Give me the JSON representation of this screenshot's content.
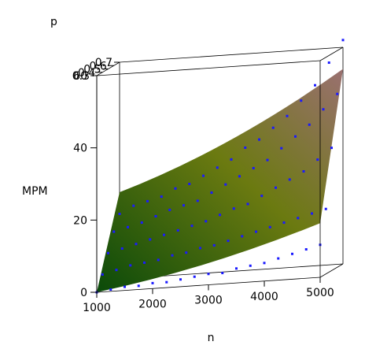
{
  "chart_data": {
    "type": "scatter",
    "title": "",
    "surface": {
      "type": "fitted-surface",
      "description_colors": [
        "#0a4a0a",
        "#6b7a10",
        "#9a7070"
      ],
      "corners": {
        "n1000_p0.3": 0,
        "n5000_p0.3": 15,
        "n1000_p0.7": 24,
        "n5000_p0.7": 54
      }
    },
    "axes": {
      "x": {
        "label": "n",
        "range": [
          1000,
          5000
        ],
        "ticks": [
          "1000",
          "2000",
          "3000",
          "4000",
          "5000"
        ]
      },
      "y": {
        "label": "p",
        "range": [
          0.3,
          0.7
        ],
        "ticks": [
          "0.3",
          "0.4",
          "0.5",
          "0.6",
          "0.7"
        ]
      },
      "z": {
        "label": "MPM",
        "range": [
          0,
          60
        ],
        "ticks": [
          "0",
          "20",
          "40",
          "60"
        ]
      }
    },
    "point_color": "#1a1aff",
    "series": [
      {
        "p": 0.3,
        "points": [
          [
            1000,
            0
          ],
          [
            1250,
            0.5
          ],
          [
            1500,
            1
          ],
          [
            1750,
            1
          ],
          [
            2000,
            1.5
          ],
          [
            2250,
            1.5
          ],
          [
            2500,
            2
          ],
          [
            2750,
            2.5
          ],
          [
            3000,
            3
          ],
          [
            3250,
            3
          ],
          [
            3500,
            4
          ],
          [
            3750,
            4.5
          ],
          [
            4000,
            5
          ],
          [
            4250,
            6
          ],
          [
            4500,
            7
          ],
          [
            4750,
            8
          ],
          [
            5000,
            9
          ]
        ]
      },
      {
        "p": 0.4,
        "points": [
          [
            1000,
            4
          ],
          [
            1250,
            5
          ],
          [
            1500,
            6
          ],
          [
            1750,
            6.5
          ],
          [
            2000,
            7
          ],
          [
            2250,
            8
          ],
          [
            2500,
            8.5
          ],
          [
            2750,
            9.5
          ],
          [
            3000,
            10
          ],
          [
            3250,
            11
          ],
          [
            3500,
            12
          ],
          [
            3750,
            13
          ],
          [
            4000,
            14
          ],
          [
            4250,
            15
          ],
          [
            4500,
            16
          ],
          [
            4750,
            17
          ],
          [
            5000,
            18
          ]
        ]
      },
      {
        "p": 0.5,
        "points": [
          [
            1000,
            9
          ],
          [
            1250,
            10
          ],
          [
            1500,
            11
          ],
          [
            1750,
            12
          ],
          [
            2000,
            13
          ],
          [
            2250,
            14
          ],
          [
            2500,
            15
          ],
          [
            2750,
            16
          ],
          [
            3000,
            17.5
          ],
          [
            3250,
            19
          ],
          [
            3500,
            20
          ],
          [
            3750,
            22
          ],
          [
            4000,
            24
          ],
          [
            4250,
            26
          ],
          [
            4500,
            28
          ],
          [
            4750,
            31
          ],
          [
            5000,
            34
          ]
        ]
      },
      {
        "p": 0.6,
        "points": [
          [
            1000,
            14
          ],
          [
            1250,
            15
          ],
          [
            1500,
            16
          ],
          [
            1750,
            17.5
          ],
          [
            2000,
            19
          ],
          [
            2250,
            20
          ],
          [
            2500,
            21
          ],
          [
            2750,
            23
          ],
          [
            3000,
            25
          ],
          [
            3250,
            27
          ],
          [
            3500,
            29
          ],
          [
            3750,
            31
          ],
          [
            4000,
            34
          ],
          [
            4250,
            37
          ],
          [
            4500,
            40
          ],
          [
            4750,
            44
          ],
          [
            5000,
            48
          ]
        ]
      },
      {
        "p": 0.7,
        "points": [
          [
            1000,
            18
          ],
          [
            1250,
            20
          ],
          [
            1500,
            21
          ],
          [
            1750,
            22
          ],
          [
            2000,
            24
          ],
          [
            2250,
            25
          ],
          [
            2500,
            27
          ],
          [
            2750,
            29
          ],
          [
            3000,
            31
          ],
          [
            3250,
            34
          ],
          [
            3500,
            36
          ],
          [
            3750,
            39
          ],
          [
            4000,
            42
          ],
          [
            4250,
            46
          ],
          [
            4500,
            50
          ],
          [
            4750,
            56
          ],
          [
            5000,
            62
          ]
        ]
      }
    ]
  }
}
